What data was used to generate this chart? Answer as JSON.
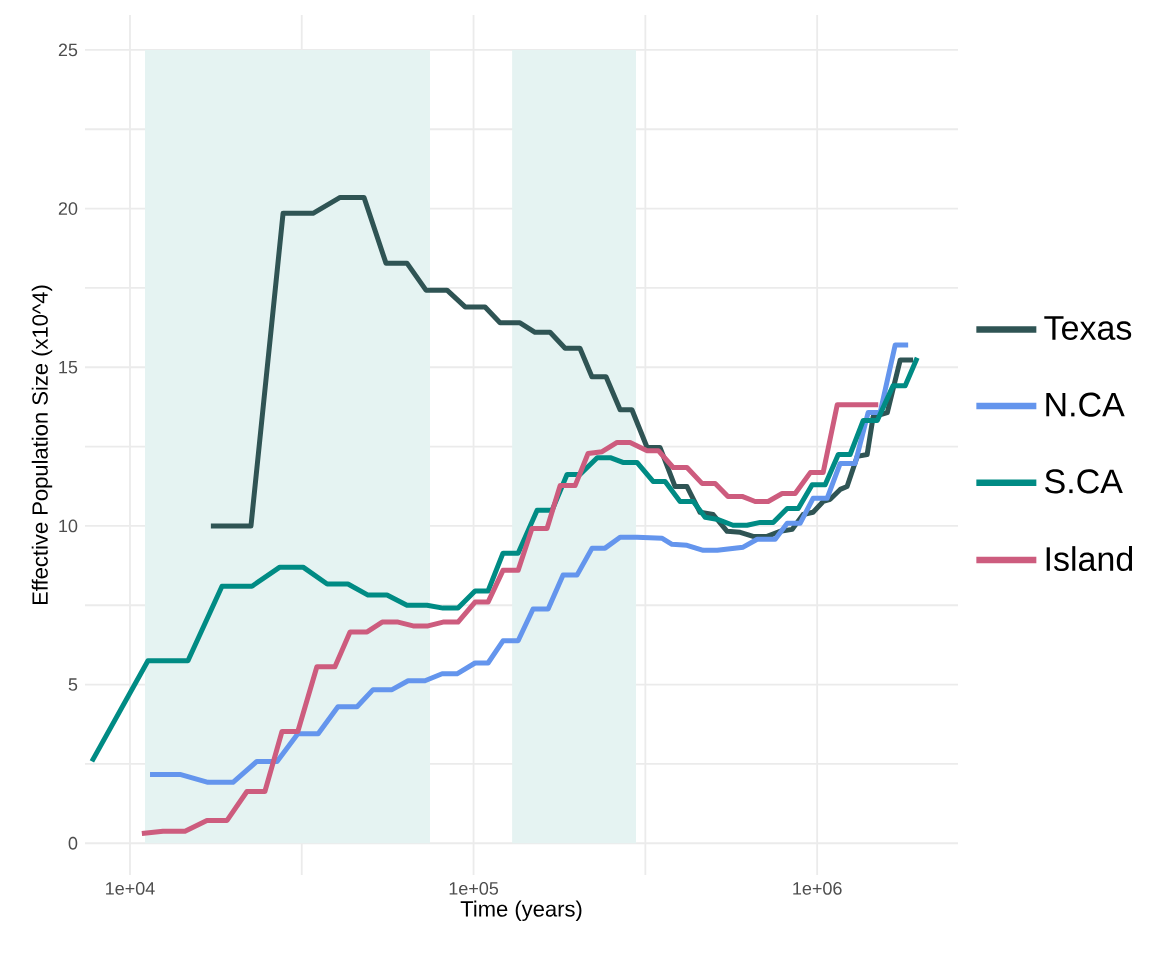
{
  "chart_data": {
    "type": "line",
    "xlabel": "Time (years)",
    "ylabel": "Effective Population Size (x10^4)",
    "log": "x",
    "grid": true,
    "legend": "right",
    "line_style": "solid",
    "marker": "none",
    "xlim": [
      7400,
      2570000
    ],
    "ylim": [
      -1.0,
      26.1
    ],
    "xticks": [
      {
        "value": 10000,
        "label": "1e+04"
      },
      {
        "value": 31623,
        "label": null
      },
      {
        "value": 100000,
        "label": "1e+05"
      },
      {
        "value": 316228,
        "label": null
      },
      {
        "value": 1000000,
        "label": "1e+06"
      }
    ],
    "yticks": [
      0,
      {
        "value": 2.5,
        "label": null
      },
      5,
      {
        "value": 7.5,
        "label": null
      },
      10,
      {
        "value": 12.5,
        "label": null
      },
      15,
      {
        "value": 17.5,
        "label": null
      },
      20,
      {
        "value": 22.5,
        "label": null
      },
      25
    ],
    "bands": [
      {
        "axis": "x",
        "from": 11060,
        "to": 74700,
        "color": "#e5f3f2"
      },
      {
        "axis": "x",
        "from": 129500,
        "to": 297000,
        "color": "#e5f3f2"
      }
    ],
    "series": [
      {
        "name": "Texas",
        "color": "#2f5454",
        "x": [
          17200,
          22500,
          27900,
          34100,
          40900,
          48000,
          55600,
          64000,
          72700,
          83700,
          94500,
          108000,
          119400,
          136500,
          151000,
          167000,
          184700,
          204000,
          221000,
          243000,
          267000,
          289000,
          320000,
          349000,
          386000,
          418000,
          456000,
          498000,
          547000,
          597000,
          651000,
          715000,
          780000,
          846000,
          910000,
          973000,
          1041000,
          1091000,
          1167000,
          1222000,
          1308000,
          1398000,
          1455000,
          1600000,
          1745000,
          1902000
        ],
        "values": [
          10,
          10,
          19.85,
          19.85,
          20.35,
          20.35,
          18.28,
          18.28,
          17.43,
          17.43,
          16.9,
          16.9,
          16.4,
          16.4,
          16.1,
          16.1,
          15.6,
          15.6,
          14.7,
          14.7,
          13.66,
          13.66,
          12.47,
          12.47,
          11.24,
          11.24,
          10.43,
          10.36,
          9.83,
          9.8,
          9.67,
          9.67,
          9.83,
          9.89,
          10.36,
          10.43,
          10.77,
          10.84,
          11.15,
          11.24,
          12.19,
          12.25,
          13.44,
          13.57,
          15.23,
          15.23
        ]
      },
      {
        "name": "N.CA",
        "color": "#6495ed",
        "x": [
          11440,
          13980,
          16870,
          19950,
          23400,
          26800,
          30800,
          35300,
          40300,
          45800,
          51000,
          57900,
          64500,
          72200,
          81000,
          89500,
          101000,
          110200,
          121800,
          134800,
          149000,
          164800,
          182200,
          200000,
          221300,
          241400,
          267000,
          299000,
          354000,
          378000,
          418000,
          466000,
          512000,
          609000,
          669000,
          755000,
          818000,
          892000,
          973000,
          1069000,
          1167000,
          1290000,
          1407000,
          1525000,
          1687000,
          1840000
        ],
        "values": [
          2.17,
          2.17,
          1.92,
          1.92,
          2.58,
          2.58,
          3.45,
          3.45,
          4.3,
          4.3,
          4.84,
          4.84,
          5.12,
          5.12,
          5.34,
          5.34,
          5.68,
          5.68,
          6.38,
          6.38,
          7.38,
          7.38,
          8.45,
          8.45,
          9.3,
          9.3,
          9.64,
          9.64,
          9.61,
          9.42,
          9.39,
          9.23,
          9.23,
          9.33,
          9.58,
          9.58,
          10.08,
          10.08,
          10.87,
          10.87,
          11.97,
          11.97,
          13.57,
          13.57,
          15.7,
          15.7
        ]
      },
      {
        "name": "S.CA",
        "color": "#008b84",
        "x": [
          7750,
          11280,
          14750,
          18530,
          22650,
          27300,
          31900,
          37500,
          43100,
          49300,
          56000,
          64000,
          73200,
          81500,
          90100,
          101000,
          110200,
          121800,
          134800,
          153100,
          169200,
          187100,
          204000,
          229000,
          250000,
          272000,
          299000,
          333000,
          361000,
          399000,
          436000,
          472000,
          515000,
          569000,
          625000,
          683000,
          745000,
          818000,
          881000,
          967000,
          1055000,
          1152000,
          1247000,
          1361000,
          1496000,
          1664000,
          1804000,
          1955000
        ],
        "values": [
          2.58,
          5.75,
          5.75,
          8.1,
          8.1,
          8.7,
          8.7,
          8.17,
          8.17,
          7.82,
          7.82,
          7.5,
          7.5,
          7.41,
          7.41,
          7.95,
          7.95,
          9.14,
          9.14,
          10.49,
          10.49,
          11.62,
          11.62,
          12.15,
          12.15,
          12.0,
          12.0,
          11.4,
          11.4,
          10.77,
          10.77,
          10.27,
          10.2,
          10.02,
          10.02,
          10.11,
          10.11,
          10.55,
          10.55,
          11.3,
          11.3,
          12.25,
          12.25,
          13.32,
          13.32,
          14.42,
          14.42,
          15.3
        ]
      },
      {
        "name": "Island",
        "color": "#cd5c7e",
        "x": [
          10830,
          12480,
          14460,
          16750,
          19170,
          21900,
          24700,
          27700,
          30800,
          35000,
          39500,
          43700,
          49000,
          54200,
          60300,
          66700,
          73700,
          81500,
          90100,
          101000,
          110200,
          121800,
          134800,
          147900,
          163600,
          178600,
          197500,
          215400,
          236600,
          261700,
          285500,
          320000,
          345000,
          381000,
          418000,
          462000,
          505000,
          550000,
          605000,
          660000,
          720000,
          791000,
          863000,
          955000,
          1041000,
          1144000,
          1506000
        ],
        "values": [
          0.31,
          0.38,
          0.38,
          0.72,
          0.72,
          1.63,
          1.63,
          3.52,
          3.52,
          5.56,
          5.56,
          6.66,
          6.66,
          6.97,
          6.97,
          6.85,
          6.85,
          6.97,
          6.97,
          7.6,
          7.6,
          8.6,
          8.6,
          9.92,
          9.92,
          11.27,
          11.27,
          12.28,
          12.34,
          12.63,
          12.63,
          12.37,
          12.37,
          11.84,
          11.84,
          11.34,
          11.34,
          10.93,
          10.93,
          10.77,
          10.77,
          11.02,
          11.02,
          11.68,
          11.68,
          13.82,
          13.82
        ]
      }
    ]
  }
}
